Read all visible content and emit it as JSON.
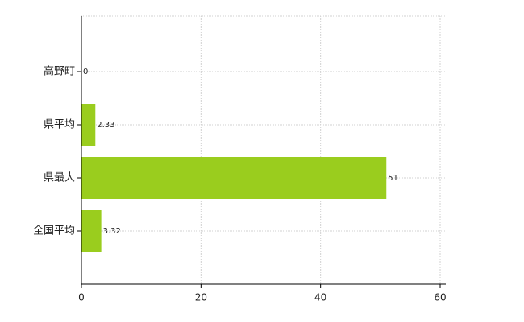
{
  "chart_data": {
    "type": "bar",
    "orientation": "horizontal",
    "categories": [
      "高野町",
      "県平均",
      "県最大",
      "全国平均"
    ],
    "values": [
      0,
      2.33,
      51,
      3.32
    ],
    "color": "#9acd1e",
    "xlim": [
      0,
      60
    ],
    "xticks": [
      0,
      20,
      40,
      60
    ],
    "grid": true
  }
}
